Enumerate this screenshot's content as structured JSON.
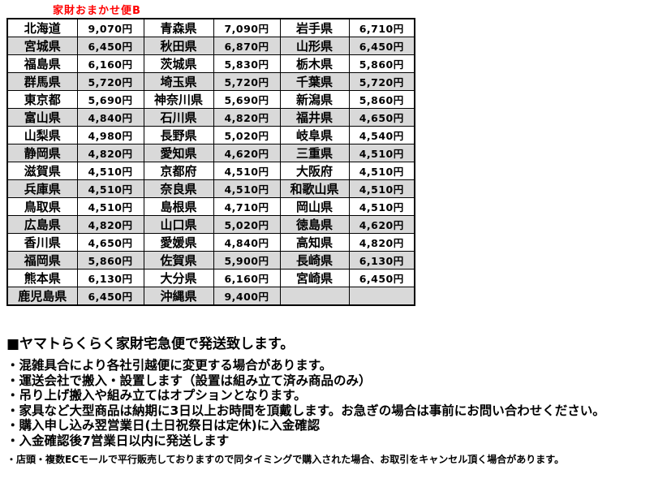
{
  "title": "家財おまかせ便B",
  "table": {
    "rows": [
      [
        "北海道",
        "9,070円",
        "青森県",
        "7,090円",
        "岩手県",
        "6,710円"
      ],
      [
        "宮城県",
        "6,450円",
        "秋田県",
        "6,870円",
        "山形県",
        "6,450円"
      ],
      [
        "福島県",
        "6,160円",
        "茨城県",
        "5,830円",
        "栃木県",
        "5,860円"
      ],
      [
        "群馬県",
        "5,720円",
        "埼玉県",
        "5,720円",
        "千葉県",
        "5,720円"
      ],
      [
        "東京都",
        "5,690円",
        "神奈川県",
        "5,690円",
        "新潟県",
        "5,860円"
      ],
      [
        "富山県",
        "4,840円",
        "石川県",
        "4,820円",
        "福井県",
        "4,650円"
      ],
      [
        "山梨県",
        "4,980円",
        "長野県",
        "5,020円",
        "岐阜県",
        "4,540円"
      ],
      [
        "静岡県",
        "4,820円",
        "愛知県",
        "4,620円",
        "三重県",
        "4,510円"
      ],
      [
        "滋賀県",
        "4,510円",
        "京都府",
        "4,510円",
        "大阪府",
        "4,510円"
      ],
      [
        "兵庫県",
        "4,510円",
        "奈良県",
        "4,510円",
        "和歌山県",
        "4,510円"
      ],
      [
        "鳥取県",
        "4,510円",
        "島根県",
        "4,710円",
        "岡山県",
        "4,510円"
      ],
      [
        "広島県",
        "4,820円",
        "山口県",
        "5,020円",
        "徳島県",
        "4,620円"
      ],
      [
        "香川県",
        "4,650円",
        "愛媛県",
        "4,840円",
        "高知県",
        "4,820円"
      ],
      [
        "福岡県",
        "5,860円",
        "佐賀県",
        "5,900円",
        "長崎県",
        "6,130円"
      ],
      [
        "熊本県",
        "6,130円",
        "大分県",
        "6,160円",
        "宮崎県",
        "6,450円"
      ],
      [
        "鹿児島県",
        "6,450円",
        "沖縄県",
        "9,400円",
        "",
        ""
      ]
    ]
  },
  "notes": {
    "heading": "■ヤマトらくらく家財宅急便で発送致します。",
    "bullets": [
      "・混雑具合により各社引越便に変更する場合があります。",
      "・運送会社で搬入・設置します（設置は組み立て済み商品のみ）",
      "・吊り上げ搬入や組み立てはオプションとなります。",
      "・家具など大型商品は納期に3日以上お時間を頂戴します。お急ぎの場合は事前にお問い合わせください。",
      "・購入申し込み翌営業日(土日祝祭日は定休)に入金確認",
      "・入金確認後7営業日以内に発送します"
    ],
    "footnote": "・店頭・複数ECモールで平行販売しておりますので同タイミングで購入された場合、お取引をキャンセル頂く場合があります。"
  },
  "colors": {
    "title_red": "#ff0000",
    "row_alt_gray": "#d9d9d9",
    "border_black": "#000000"
  }
}
